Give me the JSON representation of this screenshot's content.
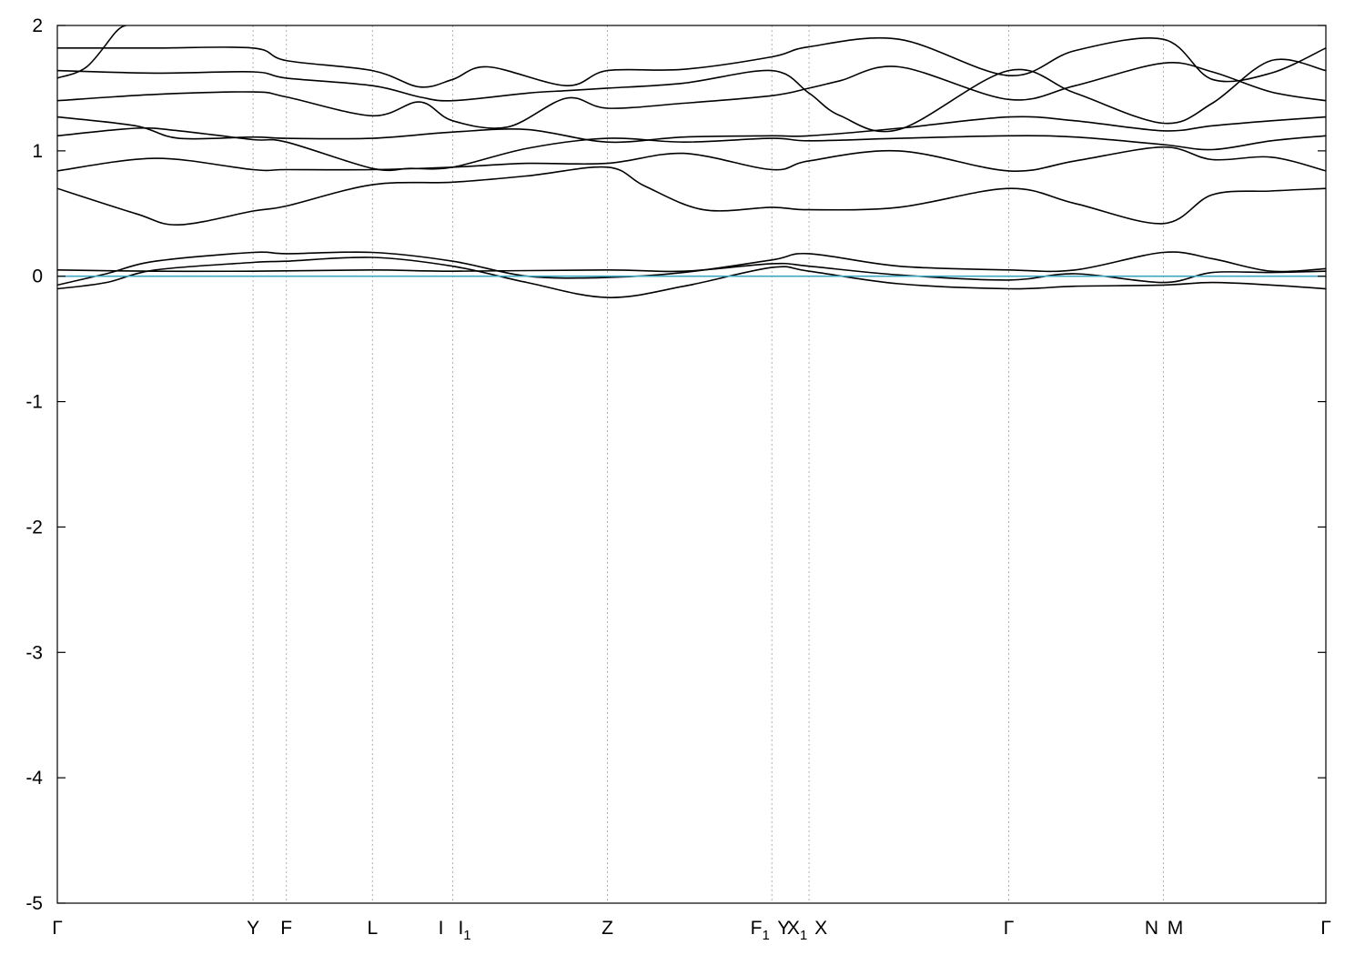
{
  "chart_data": {
    "type": "line",
    "title": "",
    "xlabel": "",
    "ylabel": "",
    "ylim": [
      -5,
      2
    ],
    "yticks": [
      -5,
      -4,
      -3,
      -2,
      -1,
      0,
      1,
      2
    ],
    "grid": "vertical dotted lines at high-symmetry points",
    "fermi_level": {
      "value": 0,
      "color": "#3fa7c4"
    },
    "kpoints": [
      {
        "base": "Γ",
        "sub": "",
        "x": 0.0
      },
      {
        "base": "Y",
        "sub": "",
        "x": 1.0
      },
      {
        "base": "F",
        "sub": "",
        "x": 1.17
      },
      {
        "base": "L",
        "sub": "",
        "x": 1.61
      },
      {
        "base": "I",
        "sub": "",
        "x": 2.02
      },
      {
        "base": "I",
        "sub": "1",
        "x": 2.02
      },
      {
        "base": "Z",
        "sub": "",
        "x": 2.81
      },
      {
        "base": "F",
        "sub": "1",
        "x": 3.65
      },
      {
        "base": "Y",
        "sub": "",
        "x": 3.65
      },
      {
        "base": "X",
        "sub": "1",
        "x": 3.84
      },
      {
        "base": "X",
        "sub": "",
        "x": 3.84
      },
      {
        "base": "Γ",
        "sub": "",
        "x": 4.86
      },
      {
        "base": "N",
        "sub": "",
        "x": 5.65
      },
      {
        "base": "M",
        "sub": "",
        "x": 5.65
      },
      {
        "base": "Γ",
        "sub": "",
        "x": 6.48
      }
    ],
    "series": [
      {
        "x": [
          0,
          0.25,
          0.5,
          1.0,
          1.17,
          1.61,
          2.02,
          2.4,
          2.81,
          3.2,
          3.65,
          3.84,
          4.3,
          4.86,
          5.2,
          5.65,
          5.9,
          6.2,
          6.48
        ],
        "y": [
          -0.1,
          -0.05,
          0.05,
          0.11,
          0.12,
          0.15,
          0.08,
          -0.05,
          -0.17,
          -0.08,
          0.07,
          0.04,
          -0.06,
          -0.1,
          -0.08,
          -0.07,
          -0.05,
          -0.07,
          -0.1
        ]
      },
      {
        "x": [
          0,
          0.25,
          0.5,
          1.0,
          1.17,
          1.61,
          2.02,
          2.4,
          2.81,
          3.2,
          3.65,
          3.84,
          4.3,
          4.86,
          5.2,
          5.65,
          5.9,
          6.2,
          6.48
        ],
        "y": [
          -0.07,
          0.02,
          0.12,
          0.19,
          0.18,
          0.19,
          0.12,
          0.0,
          -0.01,
          0.03,
          0.13,
          0.18,
          0.08,
          0.05,
          0.05,
          0.19,
          0.14,
          0.04,
          0.06
        ]
      },
      {
        "x": [
          0,
          0.5,
          1.0,
          1.61,
          2.02,
          2.81,
          3.2,
          3.65,
          3.84,
          4.3,
          4.86,
          5.2,
          5.65,
          5.9,
          6.2,
          6.48
        ],
        "y": [
          0.05,
          0.04,
          0.04,
          0.05,
          0.04,
          0.05,
          0.04,
          0.1,
          0.08,
          0.01,
          -0.03,
          0.02,
          -0.05,
          0.03,
          0.03,
          0.04
        ]
      },
      {
        "x": [
          0,
          0.4,
          0.62,
          1.0,
          1.17,
          1.61,
          2.02,
          2.4,
          2.81,
          3.0,
          3.3,
          3.65,
          3.84,
          4.3,
          4.86,
          5.2,
          5.65,
          5.9,
          6.2,
          6.48
        ],
        "y": [
          0.7,
          0.5,
          0.41,
          0.52,
          0.56,
          0.73,
          0.75,
          0.8,
          0.87,
          0.72,
          0.53,
          0.55,
          0.53,
          0.55,
          0.7,
          0.58,
          0.42,
          0.65,
          0.68,
          0.7
        ]
      },
      {
        "x": [
          0,
          0.5,
          1.0,
          1.17,
          1.61,
          2.02,
          2.4,
          2.81,
          3.2,
          3.65,
          3.84,
          4.3,
          4.86,
          5.2,
          5.65,
          5.9,
          6.2,
          6.48
        ],
        "y": [
          0.84,
          0.94,
          0.85,
          0.85,
          0.85,
          0.87,
          0.9,
          0.9,
          0.98,
          0.85,
          0.92,
          1.0,
          0.84,
          0.92,
          1.03,
          0.93,
          0.95,
          0.84
        ]
      },
      {
        "x": [
          0,
          0.4,
          0.62,
          1.0,
          1.17,
          1.61,
          1.8,
          2.02,
          2.4,
          2.81,
          3.2,
          3.65,
          3.84,
          4.3,
          4.86,
          5.2,
          5.65,
          5.9,
          6.2,
          6.48
        ],
        "y": [
          1.12,
          1.18,
          1.16,
          1.09,
          1.07,
          0.86,
          0.86,
          0.87,
          1.02,
          1.1,
          1.07,
          1.1,
          1.08,
          1.1,
          1.12,
          1.11,
          1.05,
          1.01,
          1.08,
          1.12
        ]
      },
      {
        "x": [
          0,
          0.4,
          0.62,
          1.0,
          1.17,
          1.61,
          2.02,
          2.4,
          2.81,
          3.2,
          3.65,
          3.84,
          4.3,
          4.86,
          5.2,
          5.65,
          5.9,
          6.2,
          6.48
        ],
        "y": [
          1.27,
          1.2,
          1.1,
          1.11,
          1.1,
          1.1,
          1.15,
          1.17,
          1.07,
          1.11,
          1.12,
          1.12,
          1.18,
          1.27,
          1.24,
          1.16,
          1.2,
          1.24,
          1.27
        ]
      },
      {
        "x": [
          0,
          0.5,
          1.0,
          1.17,
          1.61,
          1.85,
          2.02,
          2.3,
          2.6,
          2.81,
          3.2,
          3.65,
          3.84,
          4.0,
          4.3,
          4.86,
          5.2,
          5.65,
          5.9,
          6.2,
          6.48
        ],
        "y": [
          1.4,
          1.45,
          1.47,
          1.43,
          1.28,
          1.39,
          1.24,
          1.19,
          1.42,
          1.34,
          1.38,
          1.44,
          1.5,
          1.56,
          1.67,
          1.41,
          1.52,
          1.7,
          1.63,
          1.47,
          1.4
        ]
      },
      {
        "x": [
          0,
          0.5,
          1.0,
          1.17,
          1.61,
          1.85,
          2.02,
          2.4,
          2.6,
          2.81,
          3.2,
          3.65,
          3.84,
          4.0,
          4.3,
          4.86,
          5.2,
          5.65,
          5.9,
          6.2,
          6.48
        ],
        "y": [
          1.64,
          1.62,
          1.63,
          1.58,
          1.52,
          1.43,
          1.4,
          1.46,
          1.48,
          1.5,
          1.54,
          1.64,
          1.46,
          1.28,
          1.17,
          1.64,
          1.46,
          1.22,
          1.38,
          1.72,
          1.64
        ]
      },
      {
        "x": [
          0,
          0.5,
          1.0,
          1.17,
          1.61,
          1.85,
          2.02,
          2.2,
          2.6,
          2.81,
          3.2,
          3.65,
          3.84,
          4.3,
          4.86,
          5.2,
          5.65,
          5.9,
          6.2,
          6.48
        ],
        "y": [
          1.82,
          1.82,
          1.82,
          1.72,
          1.64,
          1.51,
          1.57,
          1.67,
          1.52,
          1.64,
          1.65,
          1.75,
          1.83,
          1.89,
          1.6,
          1.8,
          1.89,
          1.57,
          1.62,
          1.82
        ]
      },
      {
        "x": [
          0,
          0.15,
          0.3,
          0.35
        ],
        "y": [
          1.58,
          1.67,
          1.95,
          2.0
        ]
      }
    ]
  }
}
